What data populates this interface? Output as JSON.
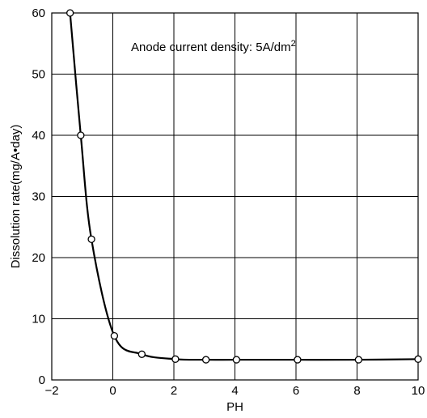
{
  "chart_data": {
    "type": "line",
    "title": "",
    "xlabel": "PH",
    "ylabel": "Dissolution rate(mg/A•day)",
    "xlim": [
      -2,
      10
    ],
    "ylim": [
      0,
      60
    ],
    "xticks": [
      -2,
      0,
      2,
      4,
      6,
      8,
      10
    ],
    "yticks": [
      0,
      10,
      20,
      30,
      40,
      50,
      60
    ],
    "xtick_labels": [
      "−2",
      "0",
      "2",
      "4",
      "6",
      "8",
      "10"
    ],
    "ytick_labels": [
      "0",
      "10",
      "20",
      "30",
      "40",
      "50",
      "60"
    ],
    "grid": true,
    "annotation": {
      "text": "Anode current density: 5A/dm",
      "superscript": "2"
    },
    "series": [
      {
        "points": [
          {
            "x": -1.4,
            "y": 60
          },
          {
            "x": -1.05,
            "y": 40
          },
          {
            "x": -0.7,
            "y": 23
          },
          {
            "x": 0.05,
            "y": 7.2
          },
          {
            "x": 0.95,
            "y": 4.2
          },
          {
            "x": 2.05,
            "y": 3.4
          },
          {
            "x": 3.05,
            "y": 3.3
          },
          {
            "x": 4.05,
            "y": 3.3
          },
          {
            "x": 6.05,
            "y": 3.3
          },
          {
            "x": 8.05,
            "y": 3.3
          },
          {
            "x": 10.0,
            "y": 3.4
          }
        ]
      }
    ]
  }
}
